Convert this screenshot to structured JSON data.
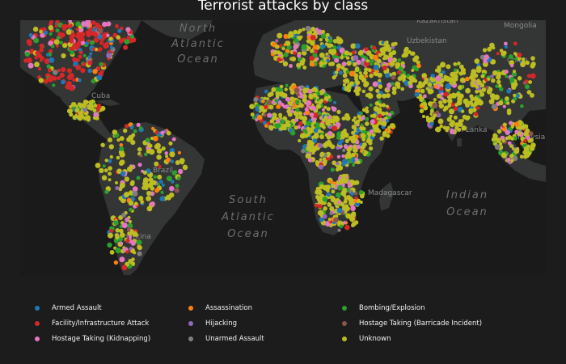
{
  "title": "Terrorist attacks by class",
  "map": {
    "ocean_labels": [
      {
        "id": "north-atlantic",
        "lines": [
          "North",
          "Atlantic",
          "Ocean"
        ]
      },
      {
        "id": "south-atlantic",
        "lines": [
          "South",
          "Atlantic",
          "Ocean"
        ]
      },
      {
        "id": "indian",
        "lines": [
          "Indian",
          "Ocean"
        ]
      }
    ],
    "place_labels": [
      "Kazakhstan",
      "Mongolia",
      "Uzbekistan",
      "China",
      "Sri Lanka",
      "Malaysia",
      "Madagascar",
      "Brazil",
      "Cuba",
      "Argentina"
    ],
    "colors": {
      "land": "#343535",
      "ocean": "#191a19",
      "label": "#6d6e6e"
    }
  },
  "legend": {
    "items": [
      {
        "label": "Armed Assault",
        "color": "#1f77b4"
      },
      {
        "label": "Assassination",
        "color": "#ff7f0e"
      },
      {
        "label": "Bombing/Explosion",
        "color": "#2ca02c"
      },
      {
        "label": "Facility/Infrastructure Attack",
        "color": "#d62728"
      },
      {
        "label": "Hijacking",
        "color": "#9467bd"
      },
      {
        "label": "Hostage Taking (Barricade Incident)",
        "color": "#8c564b"
      },
      {
        "label": "Hostage Taking (Kidnapping)",
        "color": "#e377c2"
      },
      {
        "label": "Unarmed Assault",
        "color": "#7f7f7f"
      },
      {
        "label": "Unknown",
        "color": "#bcbd22"
      }
    ]
  }
}
